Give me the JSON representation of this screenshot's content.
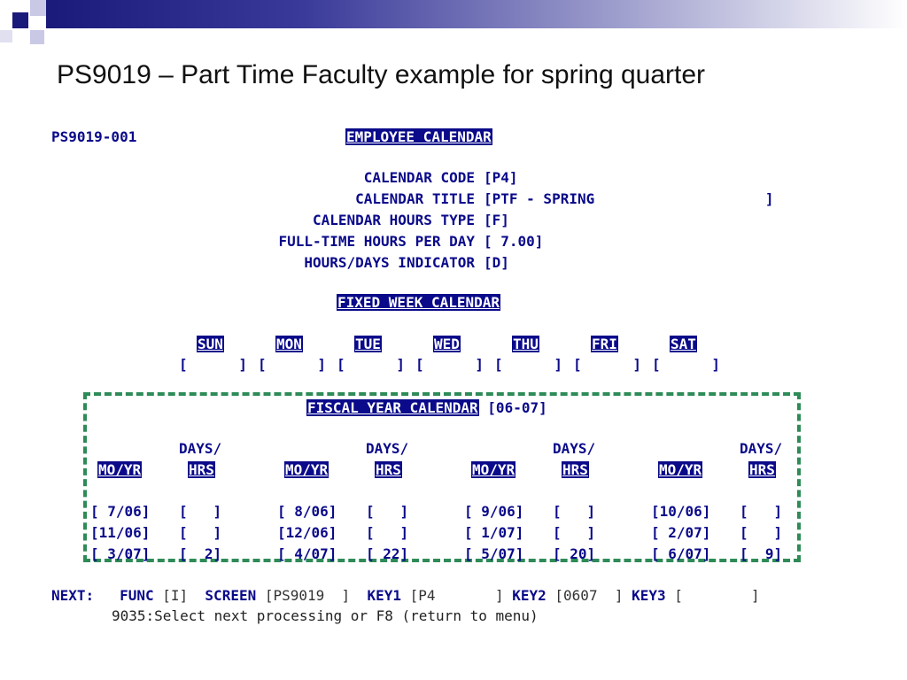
{
  "slide": {
    "title": "PS9019 – Part Time Faculty example for spring quarter"
  },
  "screen": {
    "id": "PS9019-001",
    "header": "EMPLOYEE CALENDAR",
    "fields": [
      {
        "label": "CALENDAR CODE",
        "value": "[P4]"
      },
      {
        "label": "CALENDAR TITLE",
        "value": "[PTF - SPRING                    ]"
      },
      {
        "label": "CALENDAR HOURS TYPE",
        "value": "[F]"
      },
      {
        "label": "FULL-TIME HOURS PER DAY",
        "value": "[ 7.00]"
      },
      {
        "label": "HOURS/DAYS INDICATOR",
        "value": "[D]"
      }
    ],
    "fixed_week": {
      "header": "FIXED WEEK CALENDAR",
      "days": [
        "SUN",
        "MON",
        "TUE",
        "WED",
        "THU",
        "FRI",
        "SAT"
      ],
      "values": [
        "[      ]",
        "[      ]",
        "[      ]",
        "[      ]",
        "[      ]",
        "[      ]",
        "[      ]"
      ]
    },
    "fiscal": {
      "header": "FISCAL YEAR CALENDAR",
      "year": "[06-07]",
      "days_hrs_top": "DAYS/",
      "col_moyr": "MO/YR",
      "col_hrs": "HRS",
      "rows": [
        [
          [
            "[ 7/06]",
            "[   ]"
          ],
          [
            "[ 8/06]",
            "[   ]"
          ],
          [
            "[ 9/06]",
            "[   ]"
          ],
          [
            "[10/06]",
            "[   ]"
          ]
        ],
        [
          [
            "[11/06]",
            "[   ]"
          ],
          [
            "[12/06]",
            "[   ]"
          ],
          [
            "[ 1/07]",
            "[   ]"
          ],
          [
            "[ 2/07]",
            "[   ]"
          ]
        ],
        [
          [
            "[ 3/07]",
            "[  2]"
          ],
          [
            "[ 4/07]",
            "[ 22]"
          ],
          [
            "[ 5/07]",
            "[ 20]"
          ],
          [
            "[ 6/07]",
            "[  9]"
          ]
        ]
      ]
    },
    "next": {
      "label": "NEXT:",
      "func_label": "FUNC",
      "func_value": "[I]",
      "screen_label": "SCREEN",
      "screen_value": "[PS9019  ]",
      "key1_label": "KEY1",
      "key1_value": "[P4       ]",
      "key2_label": "KEY2",
      "key2_value": "[0607  ]",
      "key3_label": "KEY3",
      "key3_value": "[        ]"
    },
    "message": "9035:Select next processing or F8 (return to menu)"
  },
  "colors": {
    "terminal_text": "#0a0a8a",
    "dashed_border": "#2e8b57",
    "title_bar": "#1a1a7a"
  }
}
